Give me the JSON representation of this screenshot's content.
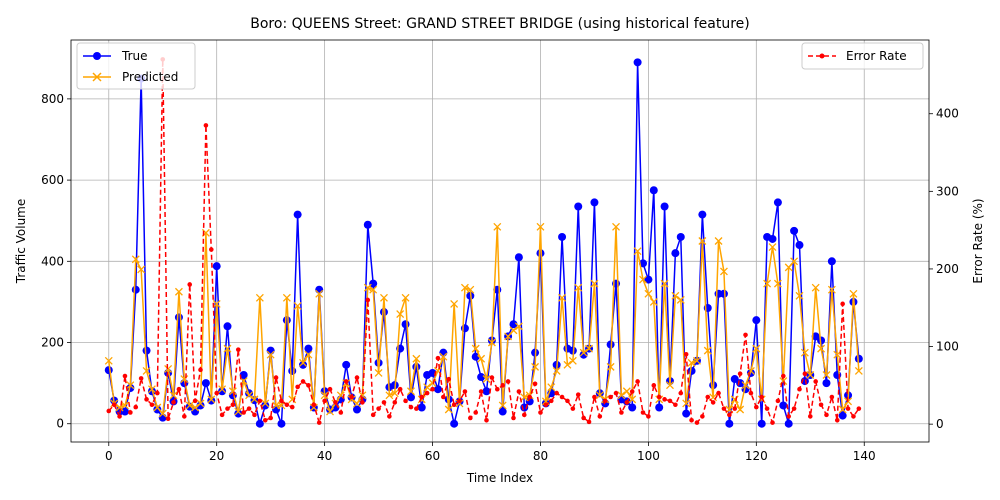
{
  "chart_data": {
    "type": "line",
    "title": "Boro: QUEENS Street: GRAND STREET BRIDGE (using historical feature)",
    "xlabel": "Time Index",
    "ylabel": "Traffic Volume",
    "y2label": "Error Rate (%)",
    "xlim": [
      -7,
      152
    ],
    "ylim": [
      -45,
      945
    ],
    "y2lim": [
      -23,
      495
    ],
    "xticks": [
      0,
      20,
      40,
      60,
      80,
      100,
      120,
      140
    ],
    "yticks": [
      0,
      200,
      400,
      600,
      800
    ],
    "y2ticks": [
      0,
      100,
      200,
      300,
      400
    ],
    "grid": true,
    "legend_left_position": "upper-left",
    "legend_right_position": "upper-right",
    "series": [
      {
        "name": "True",
        "axis": "left",
        "color": "#0000ff",
        "marker": "circle",
        "linestyle": "solid",
        "values": [
          132,
          57,
          30,
          30,
          88,
          330,
          850,
          180,
          80,
          35,
          15,
          125,
          55,
          262,
          100,
          42,
          30,
          45,
          100,
          57,
          388,
          80,
          240,
          70,
          25,
          120,
          75,
          58,
          0,
          45,
          180,
          35,
          0,
          255,
          130,
          515,
          145,
          185,
          40,
          330,
          80,
          35,
          40,
          60,
          145,
          65,
          35,
          60,
          490,
          345,
          150,
          275,
          90,
          95,
          185,
          245,
          65,
          140,
          40,
          120,
          125,
          85,
          175,
          60,
          0,
          55,
          235,
          315,
          165,
          115,
          80,
          205,
          330,
          30,
          215,
          245,
          410,
          40,
          55,
          175,
          420,
          50,
          75,
          145,
          460,
          185,
          180,
          535,
          170,
          185,
          545,
          75,
          50,
          195,
          345,
          60,
          55,
          40,
          890,
          395,
          355,
          575,
          40,
          535,
          105,
          420,
          460,
          25,
          130,
          155,
          515,
          285,
          95,
          320,
          320,
          0,
          110,
          100,
          85,
          125,
          255,
          0,
          460,
          455,
          545,
          45,
          0,
          475,
          440,
          105,
          120,
          215,
          205,
          100,
          400,
          120,
          20,
          70,
          300,
          160
        ]
      },
      {
        "name": "Predicted",
        "axis": "left",
        "color": "#ffa500",
        "marker": "x",
        "linestyle": "solid",
        "values": [
          155,
          50,
          40,
          45,
          95,
          405,
          380,
          130,
          85,
          40,
          25,
          135,
          70,
          325,
          110,
          45,
          40,
          50,
          470,
          60,
          295,
          85,
          185,
          80,
          30,
          105,
          70,
          60,
          310,
          50,
          170,
          45,
          45,
          310,
          60,
          290,
          150,
          170,
          40,
          320,
          70,
          30,
          50,
          70,
          100,
          60,
          50,
          70,
          335,
          330,
          125,
          310,
          70,
          75,
          270,
          310,
          80,
          160,
          60,
          90,
          100,
          130,
          165,
          35,
          295,
          50,
          335,
          330,
          185,
          160,
          110,
          200,
          485,
          45,
          215,
          230,
          240,
          65,
          70,
          140,
          485,
          55,
          90,
          130,
          310,
          145,
          155,
          335,
          175,
          185,
          345,
          70,
          60,
          140,
          485,
          70,
          80,
          60,
          425,
          355,
          320,
          300,
          60,
          345,
          95,
          315,
          305,
          50,
          150,
          155,
          450,
          180,
          65,
          450,
          375,
          35,
          60,
          35,
          95,
          130,
          185,
          60,
          345,
          435,
          345,
          105,
          385,
          400,
          315,
          175,
          120,
          335,
          185,
          120,
          330,
          170,
          35,
          55,
          320,
          130
        ]
      },
      {
        "name": "Error Rate",
        "axis": "right",
        "color": "#ff0000",
        "marker": "dot",
        "linestyle": "dashed",
        "values": [
          17,
          25,
          10,
          62,
          15,
          22,
          59,
          32,
          25,
          40,
          470,
          7,
          28,
          45,
          10,
          180,
          30,
          70,
          385,
          225,
          40,
          12,
          20,
          25,
          96,
          15,
          20,
          12,
          30,
          5,
          8,
          60,
          30,
          25,
          22,
          48,
          55,
          50,
          25,
          2,
          30,
          45,
          28,
          15,
          55,
          35,
          60,
          28,
          160,
          12,
          20,
          28,
          10,
          28,
          45,
          30,
          22,
          20,
          35,
          40,
          45,
          85,
          35,
          58,
          25,
          30,
          42,
          8,
          15,
          42,
          5,
          60,
          45,
          50,
          55,
          8,
          42,
          12,
          35,
          52,
          15,
          25,
          30,
          40,
          35,
          30,
          20,
          38,
          8,
          3,
          35,
          10,
          30,
          35,
          40,
          15,
          28,
          42,
          55,
          15,
          10,
          50,
          35,
          32,
          30,
          25,
          40,
          90,
          5,
          2,
          10,
          35,
          28,
          40,
          20,
          12,
          20,
          65,
          115,
          40,
          22,
          35,
          20,
          2,
          30,
          62,
          10,
          20,
          45,
          65,
          10,
          55,
          25,
          12,
          35,
          5,
          155,
          20,
          10,
          20
        ]
      }
    ]
  }
}
